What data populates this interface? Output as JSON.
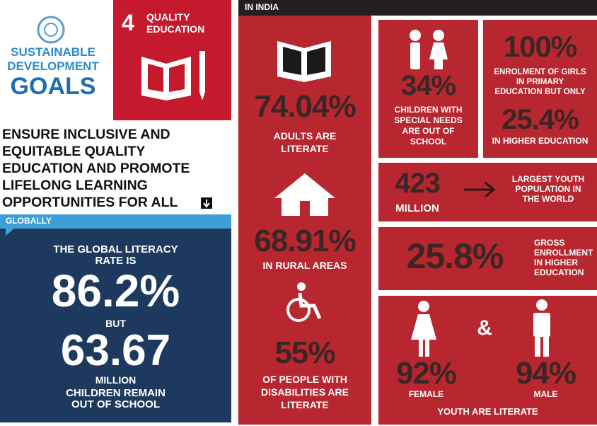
{
  "logo": {
    "lines": [
      "SUSTAINABLE",
      "DEVELOPMENT",
      "GOALS"
    ]
  },
  "goal": {
    "number": "4",
    "title": [
      "QUALITY",
      "EDUCATION"
    ]
  },
  "heading": {
    "lines": [
      "ENSURE INCLUSIVE AND",
      "EQUITABLE QUALITY",
      "EDUCATION AND PROMOTE",
      "LIFELONG LEARNING",
      "OPPORTUNITIES FOR ALL"
    ]
  },
  "globally": {
    "label": "GLOBALLY",
    "intro": [
      "THE GLOBAL LITERACY",
      "RATE IS"
    ],
    "rate": "86.2%",
    "connector": "BUT",
    "children": "63.67",
    "unit": "MILLION",
    "caption": [
      "CHILDREN  REMAIN",
      "OUT OF SCHOOL"
    ]
  },
  "india": {
    "label": "IN INDIA",
    "adults": {
      "value": "74.04%",
      "caption": [
        "ADULTS ARE",
        "LITERATE"
      ]
    },
    "rural": {
      "value": "68.91%",
      "caption": [
        "IN RURAL AREAS"
      ]
    },
    "disabilities": {
      "value": "55%",
      "caption": [
        "OF PEOPLE WITH",
        "DISABILITIES ARE",
        "LITERATE"
      ]
    },
    "special_needs": {
      "value": "34%",
      "caption": [
        "CHILDREN WITH",
        "SPECIAL NEEDS",
        "ARE OUT OF",
        "SCHOOL"
      ]
    },
    "girls": {
      "value": "100%",
      "caption": [
        "ENROLMENT OF GIRLS",
        "IN PRIMARY",
        "EDUCATION  BUT ONLY"
      ],
      "higher_value": "25.4%",
      "higher_caption": "IN HIGHER EDUCATION"
    },
    "youth": {
      "value": "423",
      "unit": "MILLION",
      "caption": [
        "LARGEST YOUTH",
        "POPULATION IN",
        "THE WORLD"
      ]
    },
    "gross": {
      "value": "25.8%",
      "caption": [
        "GROSS",
        "ENROLLMENT",
        "IN HIGHER",
        "EDUCATION"
      ]
    },
    "literacy": {
      "female_value": "92%",
      "female_label": "FEMALE",
      "connector": "&",
      "male_value": "94%",
      "male_label": "MALE",
      "caption": "YOUTH ARE LITERATE"
    }
  }
}
